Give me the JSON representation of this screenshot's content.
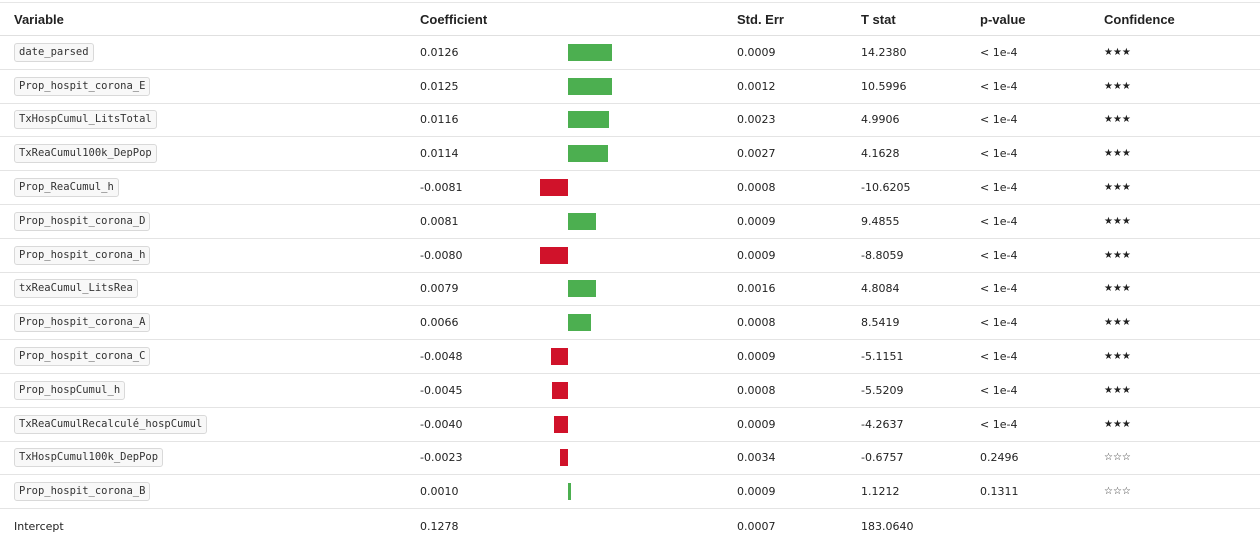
{
  "colors": {
    "positive": "#4caf50",
    "negative": "#d0122a"
  },
  "bar_scale": {
    "max_abs_coefficient": 0.0126
  },
  "headers": {
    "variable": "Variable",
    "coefficient": "Coefficient",
    "std_err": "Std. Err",
    "t_stat": "T stat",
    "p_value": "p-value",
    "confidence": "Confidence"
  },
  "rows": [
    {
      "variable": "date_parsed",
      "coefficient": "0.0126",
      "coef_value": 0.0126,
      "std_err": "0.0009",
      "t_stat": "14.2380",
      "p_value": "< 1e-4",
      "confidence": "★★★"
    },
    {
      "variable": "Prop_hospit_corona_E",
      "coefficient": "0.0125",
      "coef_value": 0.0125,
      "std_err": "0.0012",
      "t_stat": "10.5996",
      "p_value": "< 1e-4",
      "confidence": "★★★"
    },
    {
      "variable": "TxHospCumul_LitsTotal",
      "coefficient": "0.0116",
      "coef_value": 0.0116,
      "std_err": "0.0023",
      "t_stat": "4.9906",
      "p_value": "< 1e-4",
      "confidence": "★★★"
    },
    {
      "variable": "TxReaCumul100k_DepPop",
      "coefficient": "0.0114",
      "coef_value": 0.0114,
      "std_err": "0.0027",
      "t_stat": "4.1628",
      "p_value": "< 1e-4",
      "confidence": "★★★"
    },
    {
      "variable": "Prop_ReaCumul_h",
      "coefficient": "-0.0081",
      "coef_value": -0.0081,
      "std_err": "0.0008",
      "t_stat": "-10.6205",
      "p_value": "< 1e-4",
      "confidence": "★★★"
    },
    {
      "variable": "Prop_hospit_corona_D",
      "coefficient": "0.0081",
      "coef_value": 0.0081,
      "std_err": "0.0009",
      "t_stat": "9.4855",
      "p_value": "< 1e-4",
      "confidence": "★★★"
    },
    {
      "variable": "Prop_hospit_corona_h",
      "coefficient": "-0.0080",
      "coef_value": -0.008,
      "std_err": "0.0009",
      "t_stat": "-8.8059",
      "p_value": "< 1e-4",
      "confidence": "★★★"
    },
    {
      "variable": "txReaCumul_LitsRea",
      "coefficient": "0.0079",
      "coef_value": 0.0079,
      "std_err": "0.0016",
      "t_stat": "4.8084",
      "p_value": "< 1e-4",
      "confidence": "★★★"
    },
    {
      "variable": "Prop_hospit_corona_A",
      "coefficient": "0.0066",
      "coef_value": 0.0066,
      "std_err": "0.0008",
      "t_stat": "8.5419",
      "p_value": "< 1e-4",
      "confidence": "★★★"
    },
    {
      "variable": "Prop_hospit_corona_C",
      "coefficient": "-0.0048",
      "coef_value": -0.0048,
      "std_err": "0.0009",
      "t_stat": "-5.1151",
      "p_value": "< 1e-4",
      "confidence": "★★★"
    },
    {
      "variable": "Prop_hospCumul_h",
      "coefficient": "-0.0045",
      "coef_value": -0.0045,
      "std_err": "0.0008",
      "t_stat": "-5.5209",
      "p_value": "< 1e-4",
      "confidence": "★★★"
    },
    {
      "variable": "TxReaCumulRecalculé_hospCumul",
      "coefficient": "-0.0040",
      "coef_value": -0.004,
      "std_err": "0.0009",
      "t_stat": "-4.2637",
      "p_value": "< 1e-4",
      "confidence": "★★★"
    },
    {
      "variable": "TxHospCumul100k_DepPop",
      "coefficient": "-0.0023",
      "coef_value": -0.0023,
      "std_err": "0.0034",
      "t_stat": "-0.6757",
      "p_value": "0.2496",
      "confidence": "☆☆☆"
    },
    {
      "variable": "Prop_hospit_corona_B",
      "coefficient": "0.0010",
      "coef_value": 0.001,
      "std_err": "0.0009",
      "t_stat": "1.1212",
      "p_value": "0.1311",
      "confidence": "☆☆☆"
    }
  ],
  "intercept": {
    "variable": "Intercept",
    "coefficient": "0.1278",
    "std_err": "0.0007",
    "t_stat": "183.0640"
  }
}
